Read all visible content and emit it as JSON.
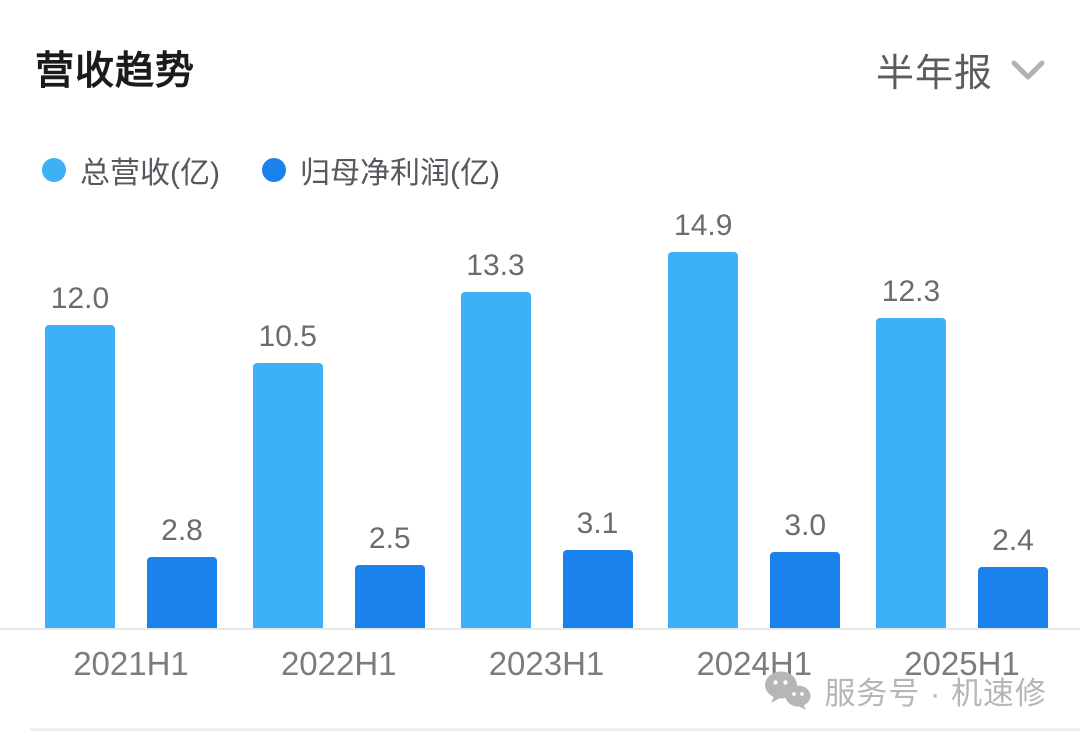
{
  "header": {
    "title": "营收趋势",
    "period_label": "半年报",
    "period_icon": "chevron-down-icon"
  },
  "chart_data": {
    "type": "bar",
    "title": "营收趋势",
    "categories": [
      "2021H1",
      "2022H1",
      "2023H1",
      "2024H1",
      "2025H1"
    ],
    "series": [
      {
        "name": "总营收(亿)",
        "color": "#3db1f5",
        "values": [
          12.0,
          10.5,
          13.3,
          14.9,
          12.3
        ]
      },
      {
        "name": "归母净利润(亿)",
        "color": "#1a82ec",
        "values": [
          2.8,
          2.5,
          3.1,
          3.0,
          2.4
        ]
      }
    ],
    "ylim": [
      0,
      14.9
    ],
    "value_labels": true,
    "value_label_decimals": 1,
    "grid": false,
    "legend_position": "top-left",
    "xlabel": "",
    "ylabel": ""
  },
  "watermark": {
    "icon": "wechat-icon",
    "text": "服务号 · 机速修"
  },
  "colors": {
    "series_revenue": "#3db1f5",
    "series_profit": "#1a82ec",
    "title_text": "#1b1b1b",
    "period_text": "#5a5d60",
    "chevron": "#b0b3b6",
    "legend_text": "#55585c",
    "value_label_text": "#696d71",
    "axis_label_text": "#7a7d80",
    "baseline": "#e9e9e9",
    "watermark_text": "#b6b6b6",
    "background": "#ffffff"
  }
}
